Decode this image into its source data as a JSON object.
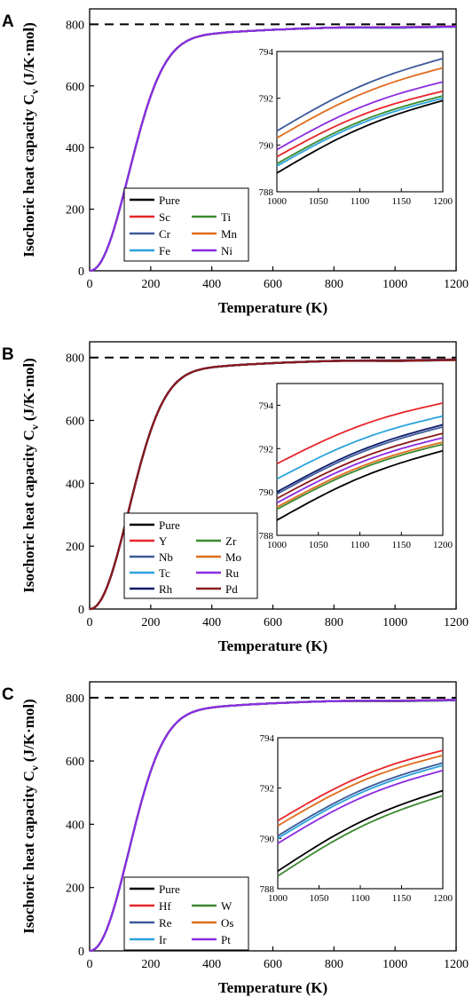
{
  "figure": {
    "ylabel": "Isochoric heat capacity  C",
    "ylabel_sub": "v",
    "ylabel_unit": "(J/K·mol)",
    "xlabel": "Temperature (K)"
  },
  "chart_data": [
    {
      "panel_label": "A",
      "type": "line",
      "xlim": [
        0,
        1200
      ],
      "ylim": [
        0,
        850
      ],
      "xticks": [
        0,
        200,
        400,
        600,
        800,
        1000,
        1200
      ],
      "yticks": [
        0,
        200,
        400,
        600,
        800
      ],
      "reference_line": 800,
      "inset": {
        "xlim": [
          1000,
          1200
        ],
        "ylim": [
          788,
          794
        ],
        "xticks": [
          1000,
          1050,
          1100,
          1150,
          1200
        ],
        "yticks": [
          788,
          790,
          792,
          794
        ]
      },
      "series": [
        {
          "name": "Pure",
          "color": "#000000",
          "y1000": 788.8,
          "y1200": 791.9
        },
        {
          "name": "Sc",
          "color": "#e8262b",
          "y1000": 789.5,
          "y1200": 792.3
        },
        {
          "name": "Ti",
          "color": "#3a8a2e",
          "y1000": 789.2,
          "y1200": 792.1
        },
        {
          "name": "Cr",
          "color": "#3c5a9a",
          "y1000": 790.6,
          "y1200": 793.7
        },
        {
          "name": "Mn",
          "color": "#e06c1c",
          "y1000": 790.3,
          "y1200": 793.3
        },
        {
          "name": "Fe",
          "color": "#2aa3dc",
          "y1000": 789.1,
          "y1200": 792.0
        },
        {
          "name": "Ni",
          "color": "#8b2be2",
          "y1000": 789.8,
          "y1200": 792.7
        }
      ]
    },
    {
      "panel_label": "B",
      "type": "line",
      "xlim": [
        0,
        1200
      ],
      "ylim": [
        0,
        850
      ],
      "xticks": [
        0,
        200,
        400,
        600,
        800,
        1000,
        1200
      ],
      "yticks": [
        0,
        200,
        400,
        600,
        800
      ],
      "reference_line": 800,
      "inset": {
        "xlim": [
          1000,
          1200
        ],
        "ylim": [
          788,
          795
        ],
        "xticks": [
          1000,
          1050,
          1100,
          1150,
          1200
        ],
        "yticks": [
          788,
          790,
          792,
          794
        ]
      },
      "series": [
        {
          "name": "Pure",
          "color": "#000000",
          "y1000": 788.7,
          "y1200": 791.9
        },
        {
          "name": "Y",
          "color": "#e8262b",
          "y1000": 791.3,
          "y1200": 794.1
        },
        {
          "name": "Zr",
          "color": "#3a8a2e",
          "y1000": 789.2,
          "y1200": 792.2
        },
        {
          "name": "Nb",
          "color": "#3c5a9a",
          "y1000": 789.9,
          "y1200": 793.0
        },
        {
          "name": "Mo",
          "color": "#e06c1c",
          "y1000": 789.3,
          "y1200": 792.3
        },
        {
          "name": "Tc",
          "color": "#2aa3dc",
          "y1000": 790.6,
          "y1200": 793.5
        },
        {
          "name": "Ru",
          "color": "#8b2be2",
          "y1000": 789.5,
          "y1200": 792.5
        },
        {
          "name": "Rh",
          "color": "#0d1b6b",
          "y1000": 790.0,
          "y1200": 793.1
        },
        {
          "name": "Pd",
          "color": "#8b1a1a",
          "y1000": 789.7,
          "y1200": 792.7
        }
      ]
    },
    {
      "panel_label": "C",
      "type": "line",
      "xlim": [
        0,
        1200
      ],
      "ylim": [
        0,
        850
      ],
      "xticks": [
        0,
        200,
        400,
        600,
        800,
        1000,
        1200
      ],
      "yticks": [
        0,
        200,
        400,
        600,
        800
      ],
      "reference_line": 800,
      "inset": {
        "xlim": [
          1000,
          1200
        ],
        "ylim": [
          788,
          794
        ],
        "xticks": [
          1000,
          1050,
          1100,
          1150,
          1200
        ],
        "yticks": [
          788,
          790,
          792,
          794
        ]
      },
      "series": [
        {
          "name": "Pure",
          "color": "#000000",
          "y1000": 788.7,
          "y1200": 791.9
        },
        {
          "name": "Hf",
          "color": "#e8262b",
          "y1000": 790.7,
          "y1200": 793.5
        },
        {
          "name": "W",
          "color": "#3a8a2e",
          "y1000": 788.5,
          "y1200": 791.7
        },
        {
          "name": "Re",
          "color": "#3c5a9a",
          "y1000": 790.1,
          "y1200": 793.0
        },
        {
          "name": "Os",
          "color": "#e06c1c",
          "y1000": 790.5,
          "y1200": 793.3
        },
        {
          "name": "Ir",
          "color": "#2aa3dc",
          "y1000": 790.0,
          "y1200": 792.9
        },
        {
          "name": "Pt",
          "color": "#8b2be2",
          "y1000": 789.8,
          "y1200": 792.7
        }
      ]
    }
  ]
}
